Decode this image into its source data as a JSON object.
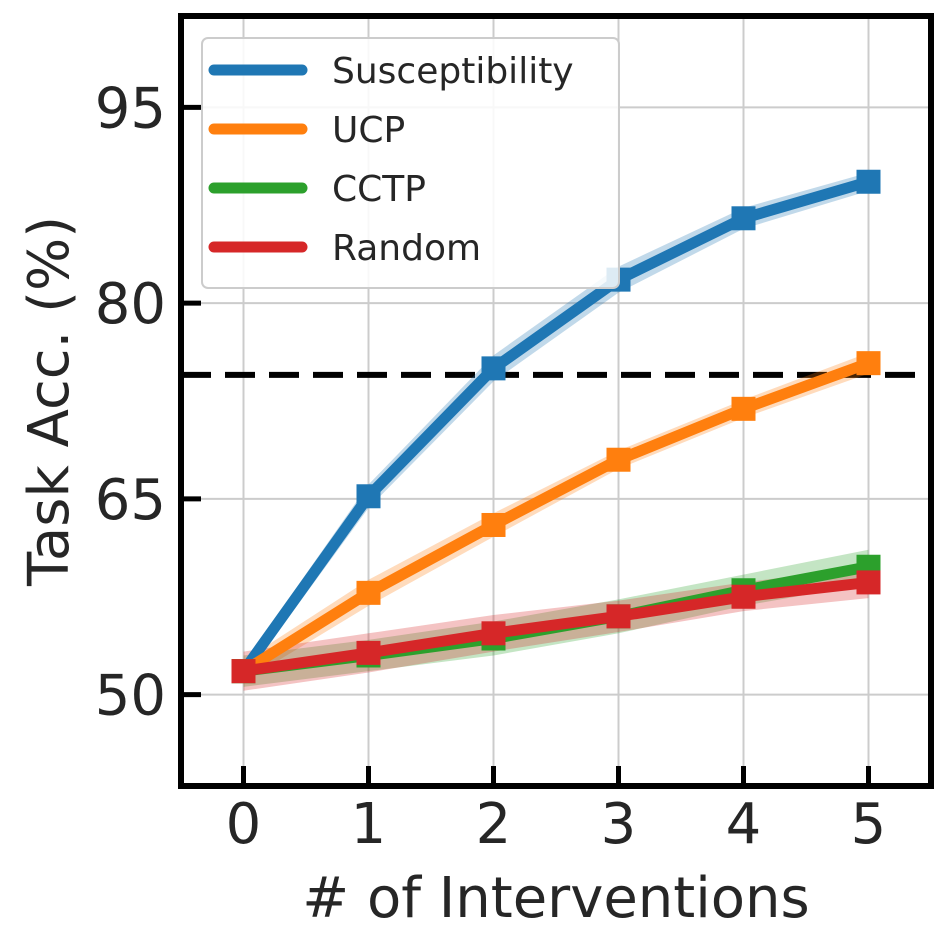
{
  "chart_data": {
    "type": "line",
    "title": "",
    "xlabel": "# of Interventions",
    "ylabel": "Task Acc. (%)",
    "x": [
      0,
      1,
      2,
      3,
      4,
      5
    ],
    "xlim": [
      -0.5,
      5.5
    ],
    "ylim": [
      43,
      102
    ],
    "xticks": [
      0,
      1,
      2,
      3,
      4,
      5
    ],
    "xtick_labels": [
      "0",
      "1",
      "2",
      "3",
      "4",
      "5"
    ],
    "yticks": [
      50,
      65,
      80,
      95
    ],
    "ytick_labels": [
      "50",
      "65",
      "80",
      "95"
    ],
    "grid": true,
    "legend_position": "top-left",
    "reference_line": {
      "y": 74.5,
      "style": "dashed",
      "color": "#000000"
    },
    "series": [
      {
        "name": "Susceptibility",
        "color": "#1f77b4",
        "values": [
          51.8,
          65.2,
          75.0,
          81.8,
          86.5,
          89.3
        ],
        "band": [
          0.6,
          0.9,
          1.0,
          1.0,
          0.8,
          0.7
        ]
      },
      {
        "name": "UCP",
        "color": "#ff7f0e",
        "values": [
          51.8,
          57.8,
          63.0,
          68.0,
          71.9,
          75.4
        ],
        "band": [
          0.8,
          1.0,
          0.9,
          0.7,
          0.7,
          0.8
        ]
      },
      {
        "name": "CCTP",
        "color": "#2ca02c",
        "values": [
          51.8,
          53.0,
          54.3,
          56.0,
          58.0,
          59.8
        ],
        "band": [
          1.2,
          1.2,
          1.3,
          1.3,
          1.2,
          1.3
        ]
      },
      {
        "name": "Random",
        "color": "#d62728",
        "values": [
          51.8,
          53.2,
          54.7,
          56.0,
          57.5,
          58.6
        ],
        "band": [
          1.5,
          1.5,
          1.4,
          1.2,
          1.1,
          1.2
        ]
      }
    ]
  }
}
